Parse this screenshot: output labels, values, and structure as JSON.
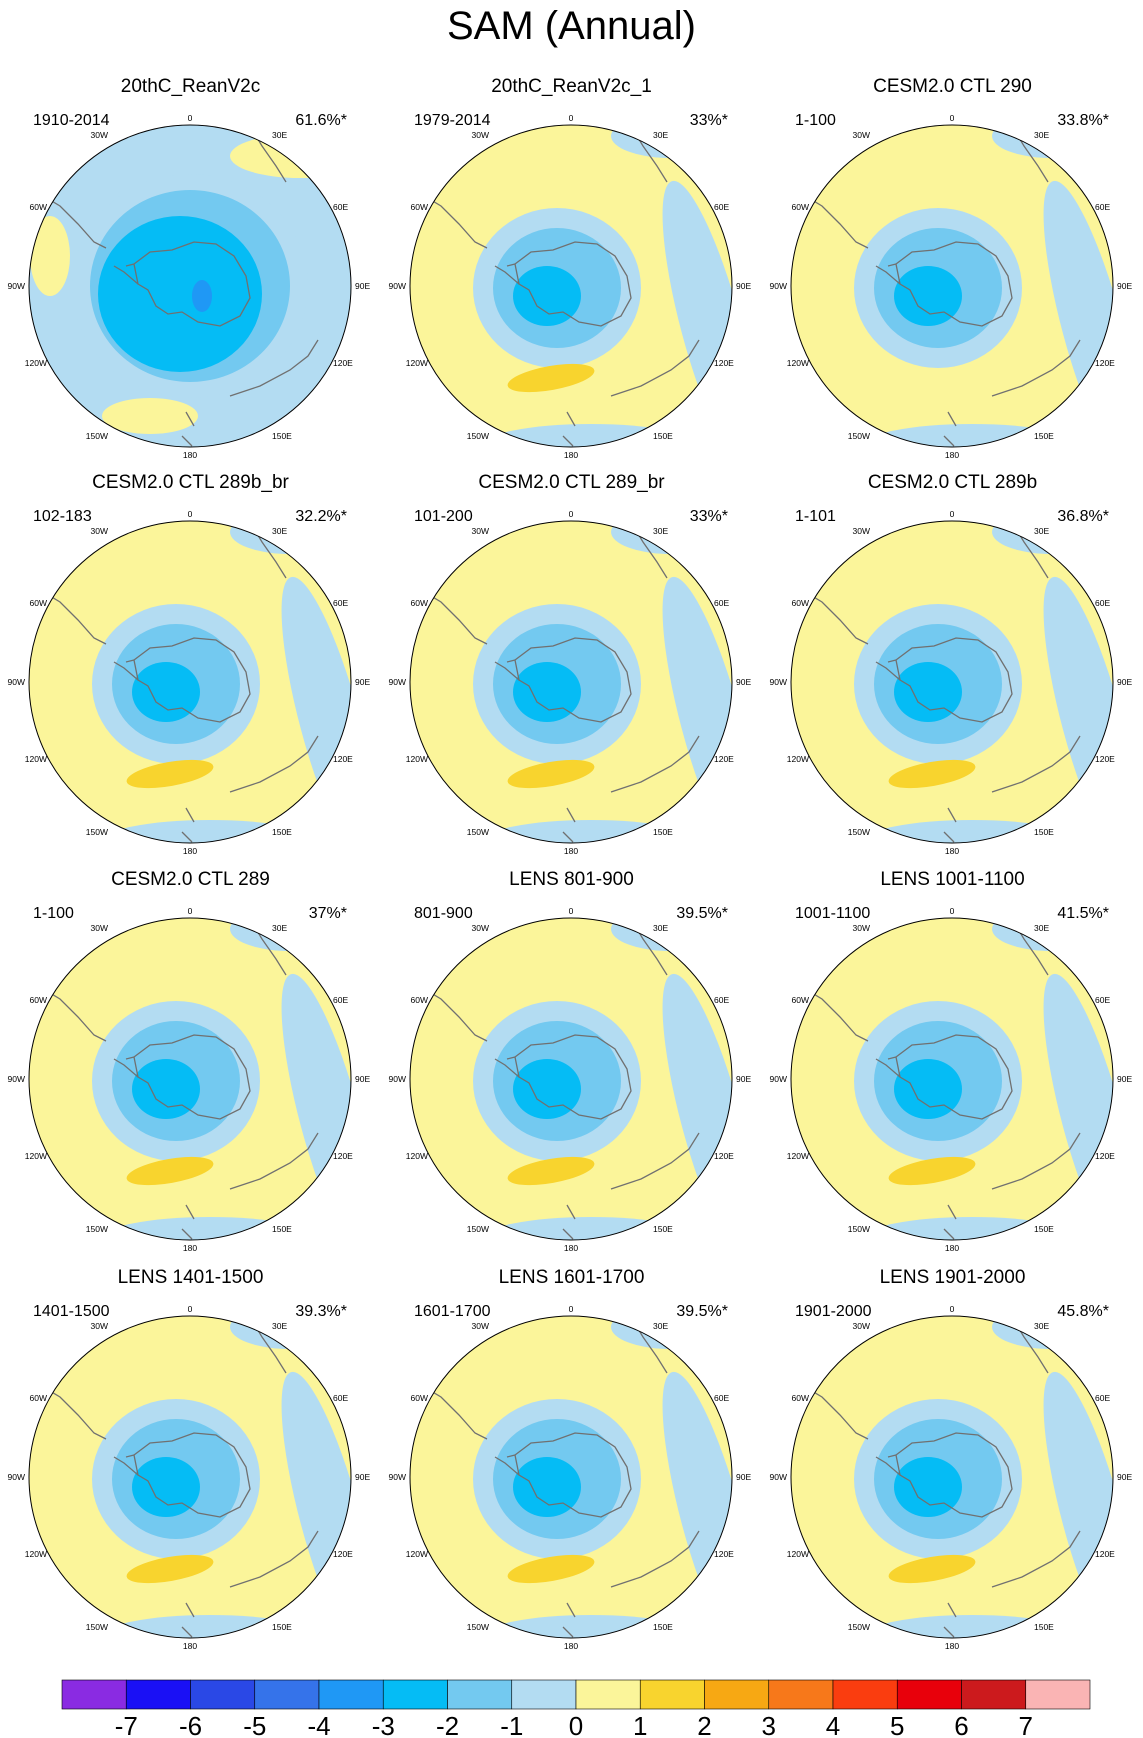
{
  "title": "SAM (Annual)",
  "colors": {
    "levels": [
      "#8a2be2",
      "#1a10f5",
      "#2a48e6",
      "#3573ea",
      "#1f98f5",
      "#05bcf5",
      "#73c9f0",
      "#b3dcf2",
      "#fbf59a",
      "#f8d42e",
      "#f7a813",
      "#f7781a",
      "#fa3d0f",
      "#e8000b",
      "#cc1a1d",
      "#fab4b4"
    ],
    "coast": "#707070",
    "frame": "#000000"
  },
  "colorbar": {
    "labels": [
      "-7",
      "-6",
      "-5",
      "-4",
      "-3",
      "-2",
      "-1",
      "0",
      "1",
      "2",
      "3",
      "4",
      "5",
      "6",
      "7"
    ]
  },
  "map_labels": {
    "top": "0",
    "bottom": "180",
    "tr": "30E",
    "r1": "60E",
    "r2": "90E",
    "r3": "120E",
    "br": "150E",
    "tl": "30W",
    "l1": "60W",
    "l2": "90W",
    "l3": "120W",
    "bl": "150W"
  },
  "panels": [
    {
      "title": "20thC_ReanV2c",
      "period": "1910-2014",
      "pct": "61.6%*"
    },
    {
      "title": "20thC_ReanV2c_1",
      "period": "1979-2014",
      "pct": "33%*"
    },
    {
      "title": "CESM2.0 CTL 290",
      "period": "1-100",
      "pct": "33.8%*"
    },
    {
      "title": "CESM2.0 CTL 289b_br",
      "period": "102-183",
      "pct": "32.2%*"
    },
    {
      "title": "CESM2.0 CTL 289_br",
      "period": "101-200",
      "pct": "33%*"
    },
    {
      "title": "CESM2.0 CTL 289b",
      "period": "1-101",
      "pct": "36.8%*"
    },
    {
      "title": "CESM2.0 CTL 289",
      "period": "1-100",
      "pct": "37%*"
    },
    {
      "title": "LENS 801-900",
      "period": "801-900",
      "pct": "39.5%*"
    },
    {
      "title": "LENS 1001-1100",
      "period": "1001-1100",
      "pct": "41.5%*"
    },
    {
      "title": "LENS 1401-1500",
      "period": "1401-1500",
      "pct": "39.3%*"
    },
    {
      "title": "LENS 1601-1700",
      "period": "1601-1700",
      "pct": "39.5%*"
    },
    {
      "title": "LENS 1901-2000",
      "period": "1901-2000",
      "pct": "45.8%*"
    }
  ]
}
